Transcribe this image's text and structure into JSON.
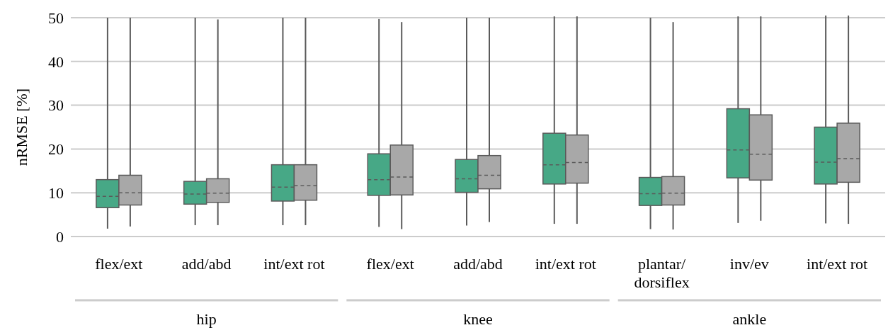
{
  "chart_data": {
    "type": "box",
    "ylabel": "nRMSE [%]",
    "categories": [
      "flex/ext",
      "add/abd",
      "int/ext rot",
      "flex/ext",
      "add/abd",
      "int/ext rot",
      "plantar/dorsiflex",
      "inv/ev",
      "int/ext rot"
    ],
    "annotations": [
      "hip",
      "knee",
      "ankle"
    ],
    "ylim": [
      0,
      50
    ],
    "yticks": [
      0,
      10,
      20,
      30,
      40,
      50
    ],
    "grid": "y",
    "series": [
      {
        "color": "#47a886",
        "boxes": [
          {
            "low": 1.8,
            "q1": 6.6,
            "median": 9.2,
            "q3": 13,
            "high": 50
          },
          {
            "low": 2.6,
            "q1": 7.4,
            "median": 9.7,
            "q3": 12.6,
            "high": 50
          },
          {
            "low": 2.6,
            "q1": 8.1,
            "median": 11.3,
            "q3": 16.4,
            "high": 50
          },
          {
            "low": 2.2,
            "q1": 9.4,
            "median": 13,
            "q3": 18.9,
            "high": 49.7
          },
          {
            "low": 2.5,
            "q1": 10.1,
            "median": 13.2,
            "q3": 17.6,
            "high": 50
          },
          {
            "low": 2.9,
            "q1": 12,
            "median": 16.4,
            "q3": 23.6,
            "high": 50.3
          },
          {
            "low": 1.7,
            "q1": 7.1,
            "median": 9.8,
            "q3": 13.5,
            "high": 50
          },
          {
            "low": 3.1,
            "q1": 13.4,
            "median": 19.8,
            "q3": 29.2,
            "high": 50.3
          },
          {
            "low": 3,
            "q1": 12,
            "median": 17,
            "q3": 25,
            "high": 50.5
          }
        ]
      },
      {
        "color": "#a8a8a8",
        "boxes": [
          {
            "low": 2.3,
            "q1": 7.2,
            "median": 10,
            "q3": 14,
            "high": 50
          },
          {
            "low": 2.6,
            "q1": 7.8,
            "median": 9.9,
            "q3": 13.2,
            "high": 49.6
          },
          {
            "low": 2.6,
            "q1": 8.3,
            "median": 11.6,
            "q3": 16.4,
            "high": 50
          },
          {
            "low": 1.7,
            "q1": 9.5,
            "median": 13.6,
            "q3": 20.9,
            "high": 49
          },
          {
            "low": 3.3,
            "q1": 10.9,
            "median": 14,
            "q3": 18.5,
            "high": 50
          },
          {
            "low": 2.9,
            "q1": 12.2,
            "median": 16.9,
            "q3": 23.2,
            "high": 50.3
          },
          {
            "low": 1.6,
            "q1": 7.2,
            "median": 9.9,
            "q3": 13.7,
            "high": 49
          },
          {
            "low": 3.6,
            "q1": 12.9,
            "median": 18.8,
            "q3": 27.8,
            "high": 50.3
          },
          {
            "low": 2.9,
            "q1": 12.4,
            "median": 17.8,
            "q3": 25.9,
            "high": 50.5
          }
        ]
      }
    ]
  }
}
